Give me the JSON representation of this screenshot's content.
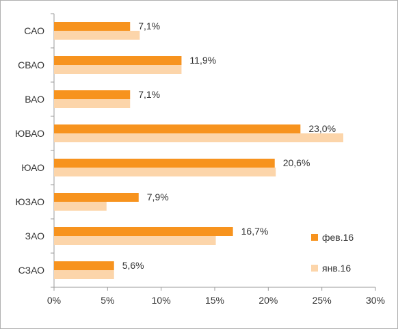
{
  "chart_data": {
    "type": "bar",
    "orientation": "horizontal",
    "categories": [
      "САО",
      "СВАО",
      "ВАО",
      "ЮВАО",
      "ЮАО",
      "ЮЗАО",
      "ЗАО",
      "СЗАО"
    ],
    "series": [
      {
        "name": "фев.16",
        "values": [
          7.1,
          11.9,
          7.1,
          23.0,
          20.6,
          7.9,
          16.7,
          5.6
        ],
        "labels": [
          "7,1%",
          "11,9%",
          "7,1%",
          "23,0%",
          "20,6%",
          "7,9%",
          "16,7%",
          "5,6%"
        ]
      },
      {
        "name": "янв.16",
        "values": [
          8.0,
          11.9,
          7.1,
          27.0,
          20.7,
          4.9,
          15.1,
          5.6
        ]
      }
    ],
    "xlim": [
      0,
      30
    ],
    "x_ticks": [
      "0%",
      "5%",
      "10%",
      "15%",
      "20%",
      "25%",
      "30%"
    ],
    "grid": false,
    "legend_position": "bottom-right",
    "colors": {
      "series1": "#f7931e",
      "series2": "#fcd5aa"
    }
  }
}
